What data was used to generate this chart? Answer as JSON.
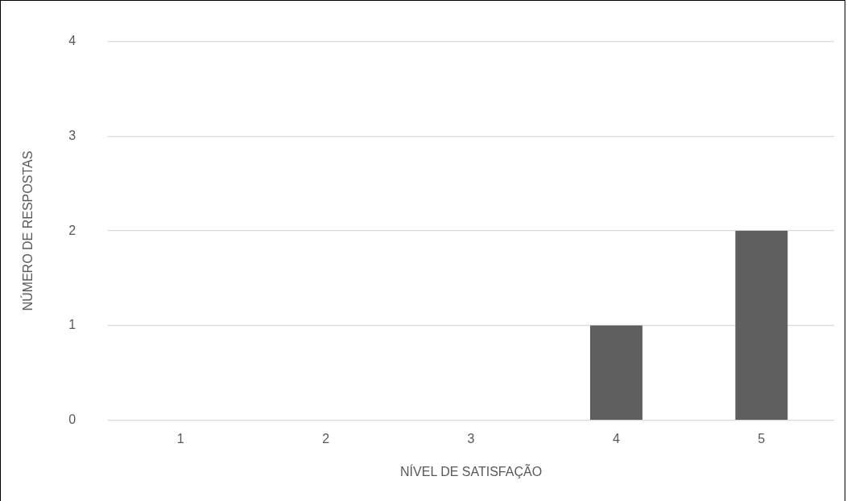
{
  "chart_data": {
    "type": "bar",
    "xlabel": "NÍVEL DE SATISFAÇÃO",
    "ylabel": "NÚMERO DE RESPOSTAS",
    "categories": [
      "1",
      "2",
      "3",
      "4",
      "5"
    ],
    "values": [
      0,
      0,
      0,
      1,
      2
    ],
    "color": "#5f5f5f",
    "ylim": [
      0,
      4
    ],
    "yticks": [
      0,
      1,
      2,
      3,
      4
    ],
    "grid": "y",
    "legend": false
  }
}
